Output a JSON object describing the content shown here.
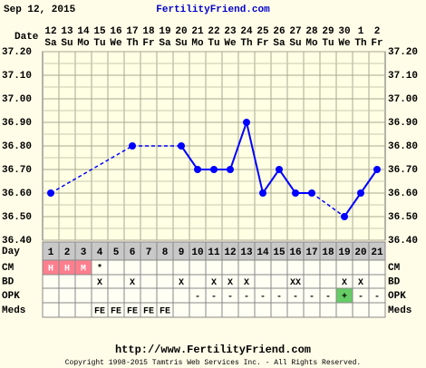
{
  "header": {
    "date": "Sep 12, 2015",
    "site": "FertilityFriend.com"
  },
  "chart_data": {
    "type": "line",
    "x_label": "Date",
    "categories": [
      "12",
      "13",
      "14",
      "15",
      "16",
      "17",
      "18",
      "19",
      "20",
      "21",
      "22",
      "23",
      "24",
      "25",
      "26",
      "27",
      "28",
      "29",
      "30",
      "1",
      "2"
    ],
    "weekdays": [
      "Sa",
      "Su",
      "Mo",
      "Tu",
      "We",
      "Th",
      "Fr",
      "Sa",
      "Su",
      "Mo",
      "Tu",
      "We",
      "Th",
      "Fr",
      "Sa",
      "Su",
      "Mo",
      "Tu",
      "We",
      "Th",
      "Fr"
    ],
    "ylim": [
      36.4,
      37.2
    ],
    "yticks": [
      {
        "value": 36.4,
        "label": "36.40"
      },
      {
        "value": 36.5,
        "label": "36.50"
      },
      {
        "value": 36.6,
        "label": "36.60"
      },
      {
        "value": 36.7,
        "label": "36.70"
      },
      {
        "value": 36.8,
        "label": "36.80"
      },
      {
        "value": 36.9,
        "label": "36.90"
      },
      {
        "value": 37.0,
        "label": "37.00"
      },
      {
        "value": 37.1,
        "label": "37.10"
      },
      {
        "value": 37.2,
        "label": "37.20"
      }
    ],
    "grid": true,
    "series": [
      {
        "color": "#0000ff",
        "values": [
          36.6,
          null,
          null,
          null,
          null,
          36.8,
          null,
          null,
          36.8,
          36.7,
          36.7,
          36.7,
          36.9,
          36.6,
          36.7,
          36.6,
          36.6,
          null,
          36.5,
          36.6,
          36.7
        ]
      }
    ]
  },
  "table": {
    "rows": [
      {
        "label": "Day",
        "cells": [
          1,
          2,
          3,
          4,
          5,
          6,
          7,
          8,
          9,
          10,
          11,
          12,
          13,
          14,
          15,
          16,
          17,
          18,
          19,
          20,
          21
        ]
      },
      {
        "label": "CM",
        "cells": [
          "H",
          "H",
          "M",
          "*",
          null,
          null,
          null,
          null,
          null,
          null,
          null,
          null,
          null,
          null,
          null,
          null,
          null,
          null,
          null,
          null,
          null
        ]
      },
      {
        "label": "BD",
        "cells": [
          null,
          null,
          null,
          "X",
          null,
          "X",
          null,
          null,
          "X",
          null,
          "X",
          "X",
          "X",
          null,
          null,
          "XX",
          null,
          null,
          "X",
          "X",
          null
        ]
      },
      {
        "label": "OPK",
        "cells": [
          null,
          null,
          null,
          null,
          null,
          null,
          null,
          null,
          null,
          "-",
          "-",
          "-",
          "-",
          "-",
          "-",
          "-",
          "-",
          "-",
          "+",
          "-",
          "-"
        ]
      },
      {
        "label": "Meds",
        "cells": [
          null,
          null,
          null,
          "FE",
          "FE",
          "FE",
          "FE",
          "FE",
          null,
          null,
          null,
          null,
          null,
          null,
          null,
          null,
          null,
          null,
          null,
          null,
          null
        ]
      }
    ]
  },
  "footer": {
    "url": "http://www.FertilityFriend.com",
    "copyright": "Copyright 1998-2015 Tamtris Web Services Inc. - All Rights Reserved."
  }
}
